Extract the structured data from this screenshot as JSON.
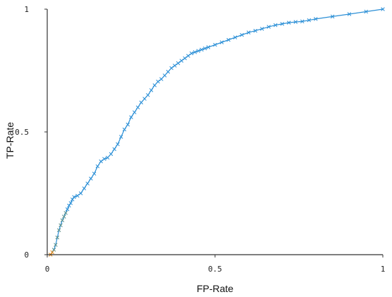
{
  "chart_data": {
    "type": "line",
    "xlabel": "FP-Rate",
    "ylabel": "TP-Rate",
    "xlim": [
      0,
      1
    ],
    "ylim": [
      0,
      1
    ],
    "xticks": [
      "0",
      "0.5",
      "1"
    ],
    "yticks": [
      "0",
      "0.5",
      "1"
    ],
    "grid": false,
    "series": [
      {
        "color": "#2b8fd6",
        "x": [
          0.01,
          0.015,
          0.02,
          0.025,
          0.03,
          0.035,
          0.04,
          0.045,
          0.05,
          0.055,
          0.06,
          0.065,
          0.07,
          0.075,
          0.08,
          0.09,
          0.1,
          0.11,
          0.12,
          0.13,
          0.14,
          0.15,
          0.16,
          0.17,
          0.18,
          0.19,
          0.2,
          0.21,
          0.22,
          0.23,
          0.24,
          0.25,
          0.26,
          0.27,
          0.28,
          0.29,
          0.3,
          0.31,
          0.32,
          0.33,
          0.34,
          0.35,
          0.36,
          0.37,
          0.38,
          0.39,
          0.4,
          0.41,
          0.42,
          0.43,
          0.44,
          0.45,
          0.46,
          0.47,
          0.48,
          0.5,
          0.52,
          0.54,
          0.56,
          0.58,
          0.6,
          0.62,
          0.64,
          0.66,
          0.68,
          0.7,
          0.72,
          0.74,
          0.76,
          0.78,
          0.8,
          0.85,
          0.9,
          0.95,
          1.0
        ],
        "y": [
          0.0,
          0.01,
          0.02,
          0.04,
          0.07,
          0.1,
          0.12,
          0.14,
          0.155,
          0.17,
          0.185,
          0.2,
          0.21,
          0.225,
          0.235,
          0.24,
          0.25,
          0.27,
          0.29,
          0.31,
          0.33,
          0.36,
          0.38,
          0.39,
          0.395,
          0.41,
          0.43,
          0.45,
          0.48,
          0.51,
          0.53,
          0.56,
          0.58,
          0.6,
          0.62,
          0.635,
          0.65,
          0.67,
          0.69,
          0.705,
          0.715,
          0.73,
          0.745,
          0.76,
          0.77,
          0.78,
          0.79,
          0.8,
          0.81,
          0.82,
          0.825,
          0.83,
          0.835,
          0.84,
          0.845,
          0.855,
          0.865,
          0.875,
          0.885,
          0.895,
          0.905,
          0.912,
          0.92,
          0.928,
          0.935,
          0.94,
          0.945,
          0.948,
          0.95,
          0.955,
          0.96,
          0.97,
          0.98,
          0.99,
          1.0
        ]
      }
    ]
  }
}
